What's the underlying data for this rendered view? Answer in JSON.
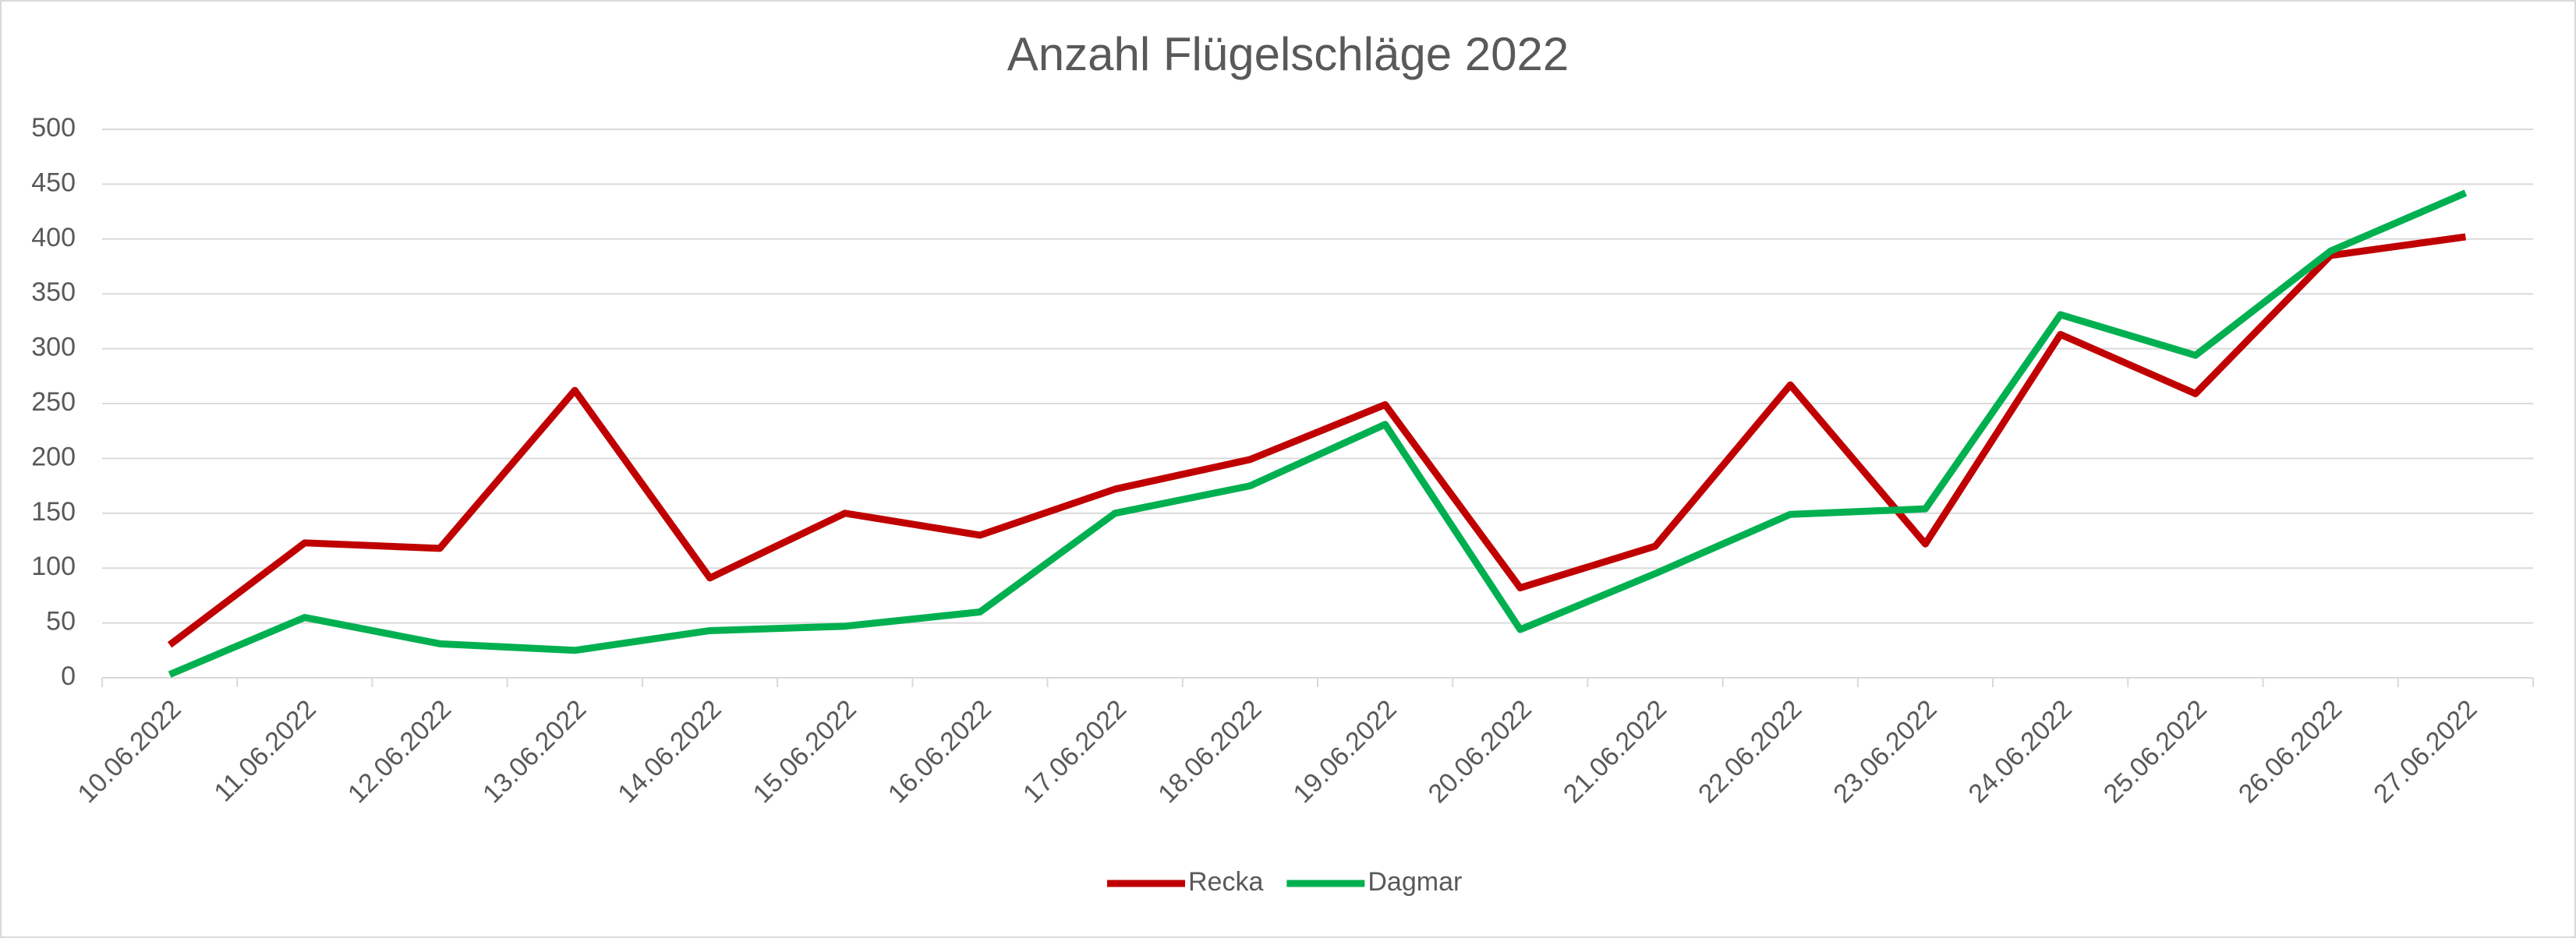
{
  "chart_data": {
    "type": "line",
    "title": "Anzahl Flügelschläge 2022",
    "categories": [
      "10.06.2022",
      "11.06.2022",
      "12.06.2022",
      "13.06.2022",
      "14.06.2022",
      "15.06.2022",
      "16.06.2022",
      "17.06.2022",
      "18.06.2022",
      "19.06.2022",
      "20.06.2022",
      "21.06.2022",
      "22.06.2022",
      "23.06.2022",
      "24.06.2022",
      "25.06.2022",
      "26.06.2022",
      "27.06.2022"
    ],
    "series": [
      {
        "name": "Recka",
        "color": "#c00000",
        "values": [
          30,
          123,
          118,
          262,
          91,
          150,
          130,
          172,
          199,
          249,
          82,
          120,
          267,
          122,
          313,
          259,
          385,
          402
        ]
      },
      {
        "name": "Dagmar",
        "color": "#00b050",
        "values": [
          3,
          55,
          31,
          25,
          43,
          47,
          60,
          150,
          175,
          231,
          44,
          95,
          149,
          154,
          331,
          294,
          389,
          442
        ]
      }
    ],
    "ylim": [
      0,
      500
    ],
    "yticks": [
      0,
      50,
      100,
      150,
      200,
      250,
      300,
      350,
      400,
      450,
      500
    ],
    "grid": true,
    "legend": "bottom"
  }
}
